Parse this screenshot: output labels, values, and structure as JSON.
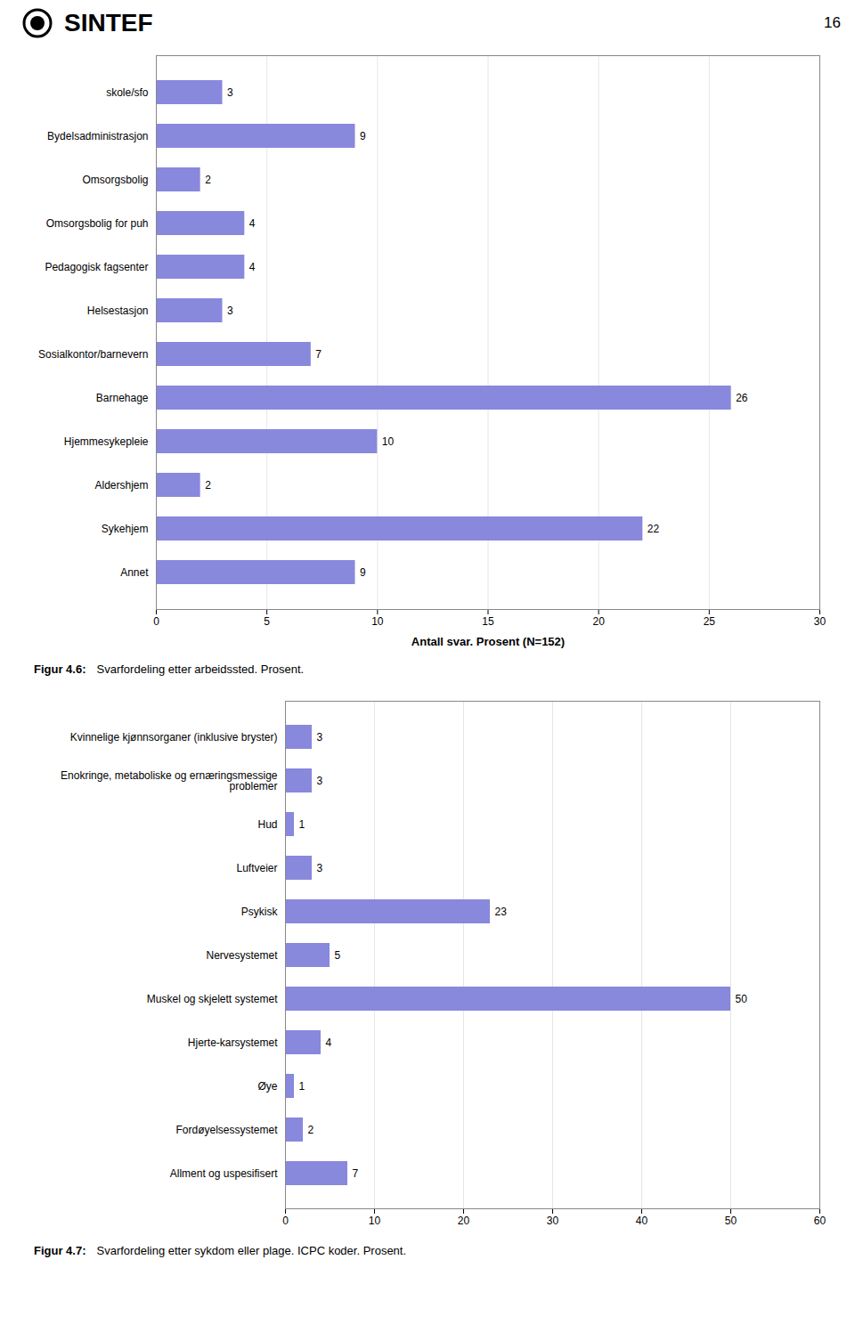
{
  "chart_data": [
    {
      "type": "bar",
      "orientation": "horizontal",
      "title": "Figur 4.6:",
      "subtitle": "Svarfordeling etter arbeidssted. Prosent.",
      "annotations": [
        "SINTEF",
        "16"
      ],
      "x_label": "Antall svar. Prosent (N=152)",
      "categories": [
        "skole/sfo",
        "Bydelsadministrasjon",
        "Omsorgsbolig",
        "Omsorgsbolig for puh",
        "Pedagogisk fagsenter",
        "Helsestasjon",
        "Sosialkontor/barnevern",
        "Barnehage",
        "Hjemmesykepleie",
        "Aldershjem",
        "Sykehjem",
        "Annet"
      ],
      "values": [
        3,
        9,
        2,
        4,
        4,
        3,
        7,
        26,
        10,
        2,
        22,
        9
      ],
      "color": "#8888dd",
      "xlim": [
        0,
        30
      ],
      "xticks": [
        0,
        5,
        10,
        15,
        20,
        25,
        30
      ],
      "grid": true,
      "data_labels": true
    },
    {
      "type": "bar",
      "orientation": "horizontal",
      "title": "Figur 4.7:",
      "subtitle": "Svarfordeling etter sykdom eller plage. ICPC koder. Prosent.",
      "categories": [
        "Kvinnelige kjønnsorganer (inklusive bryster)",
        "Enokringe, metaboliske og ernæringsmessige\nproblemer",
        "Hud",
        "Luftveier",
        "Psykisk",
        "Nervesystemet",
        "Muskel og skjelett systemet",
        "Hjerte-karsystemet",
        "Øye",
        "Fordøyelsessystemet",
        "Allment og uspesifisert"
      ],
      "values": [
        3,
        3,
        1,
        3,
        23,
        5,
        50,
        4,
        1,
        2,
        7
      ],
      "color": "#8888dd",
      "xlim": [
        0,
        60
      ],
      "xticks": [
        0,
        10,
        20,
        30,
        40,
        50,
        60
      ],
      "grid": true,
      "data_labels": true
    }
  ]
}
